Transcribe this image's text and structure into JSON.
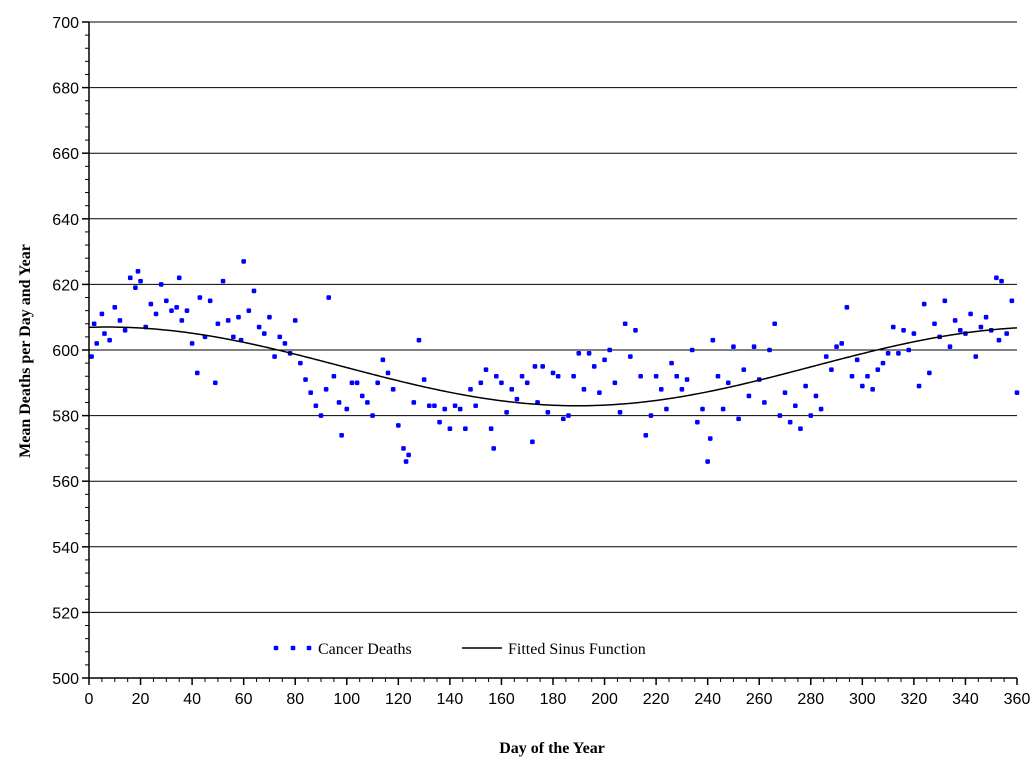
{
  "chart_data": {
    "type": "scatter",
    "xlabel": "Day of the Year",
    "ylabel": "Mean Deaths per Day and Year",
    "xlim": [
      0,
      360
    ],
    "ylim": [
      500,
      700
    ],
    "xticks": [
      0,
      20,
      40,
      60,
      80,
      100,
      120,
      140,
      160,
      180,
      200,
      220,
      240,
      260,
      280,
      300,
      320,
      340,
      360
    ],
    "yticks": [
      500,
      520,
      540,
      560,
      580,
      600,
      620,
      640,
      660,
      680,
      700
    ],
    "grid": "horizontal",
    "legend_position": "bottom-left",
    "colors": {
      "points": "#0000ff",
      "line": "#000000",
      "grid": "#000000"
    },
    "series": [
      {
        "name": "Cancer Deaths",
        "kind": "points",
        "x": [
          1,
          2,
          3,
          5,
          6,
          8,
          10,
          12,
          14,
          16,
          18,
          19,
          20,
          22,
          24,
          26,
          28,
          30,
          32,
          34,
          35,
          36,
          38,
          40,
          42,
          43,
          45,
          47,
          49,
          50,
          52,
          54,
          56,
          58,
          59,
          60,
          62,
          64,
          66,
          68,
          70,
          72,
          74,
          76,
          78,
          80,
          82,
          84,
          86,
          88,
          90,
          92,
          93,
          95,
          97,
          98,
          100,
          102,
          104,
          106,
          108,
          110,
          112,
          114,
          116,
          118,
          120,
          122,
          123,
          124,
          126,
          128,
          130,
          132,
          134,
          136,
          138,
          140,
          142,
          144,
          146,
          148,
          150,
          152,
          154,
          156,
          157,
          158,
          160,
          162,
          164,
          166,
          168,
          170,
          172,
          173,
          174,
          176,
          178,
          180,
          182,
          184,
          186,
          188,
          190,
          192,
          194,
          196,
          198,
          200,
          202,
          204,
          206,
          208,
          210,
          212,
          214,
          216,
          218,
          220,
          222,
          224,
          226,
          228,
          230,
          232,
          234,
          236,
          238,
          240,
          241,
          242,
          244,
          246,
          248,
          250,
          252,
          254,
          256,
          258,
          260,
          262,
          264,
          266,
          268,
          270,
          272,
          274,
          276,
          278,
          280,
          282,
          284,
          286,
          288,
          290,
          292,
          294,
          296,
          298,
          300,
          302,
          304,
          306,
          308,
          310,
          312,
          314,
          316,
          318,
          320,
          322,
          324,
          326,
          328,
          330,
          332,
          334,
          336,
          338,
          340,
          342,
          344,
          346,
          348,
          350,
          352,
          353,
          354,
          356,
          358,
          360
        ],
        "y": [
          598,
          608,
          602,
          611,
          605,
          603,
          613,
          609,
          606,
          622,
          619,
          624,
          621,
          607,
          614,
          611,
          620,
          615,
          612,
          613,
          622,
          609,
          612,
          602,
          593,
          616,
          604,
          615,
          590,
          608,
          621,
          609,
          604,
          610,
          603,
          627,
          612,
          618,
          607,
          605,
          610,
          598,
          604,
          602,
          599,
          609,
          596,
          591,
          587,
          583,
          580,
          588,
          616,
          592,
          584,
          574,
          582,
          590,
          590,
          586,
          584,
          580,
          590,
          597,
          593,
          588,
          577,
          570,
          566,
          568,
          584,
          603,
          591,
          583,
          583,
          578,
          582,
          576,
          583,
          582,
          576,
          588,
          583,
          590,
          594,
          576,
          570,
          592,
          590,
          581,
          588,
          585,
          592,
          590,
          572,
          595,
          584,
          595,
          581,
          593,
          592,
          579,
          580,
          592,
          599,
          588,
          599,
          595,
          587,
          597,
          600,
          590,
          581,
          608,
          598,
          606,
          592,
          574,
          580,
          592,
          588,
          582,
          596,
          592,
          588,
          591,
          600,
          578,
          582,
          566,
          573,
          603,
          592,
          582,
          590,
          601,
          579,
          594,
          586,
          601,
          591,
          584,
          600,
          608,
          580,
          587,
          578,
          583,
          576,
          589,
          580,
          586,
          582,
          598,
          594,
          601,
          602,
          613,
          592,
          597,
          589,
          592,
          588,
          594,
          596,
          599,
          607,
          599,
          606,
          600,
          605,
          589,
          614,
          593,
          608,
          604,
          615,
          601,
          609,
          606,
          605,
          611,
          598,
          607,
          610,
          606,
          622,
          603,
          621,
          605,
          615,
          587
        ]
      },
      {
        "name": "Fitted Sinus Function",
        "kind": "line",
        "mean": 595,
        "amplitude": 12,
        "peak_day": 7,
        "period": 365
      }
    ]
  }
}
